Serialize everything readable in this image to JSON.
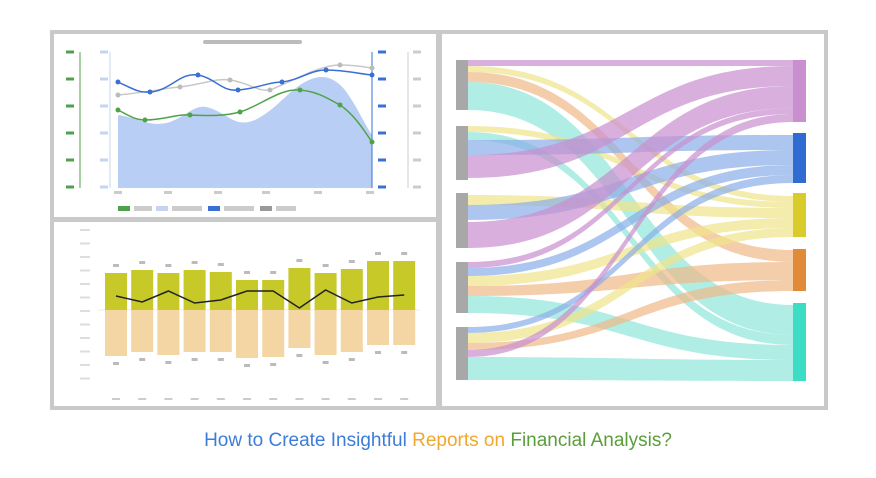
{
  "caption": {
    "part1": "How to Create Insightful",
    "part2": "Reports on",
    "part3": "Financial Analysis?"
  }
}
